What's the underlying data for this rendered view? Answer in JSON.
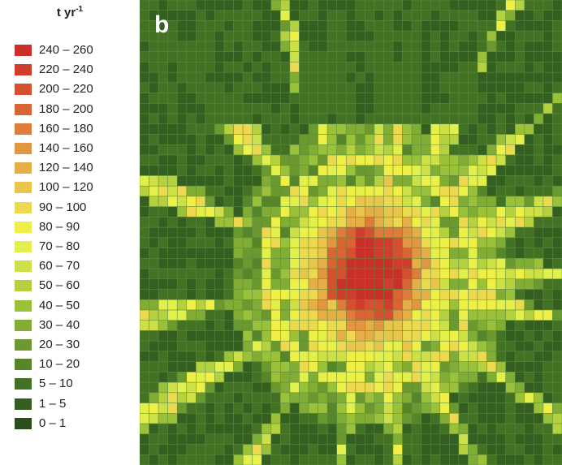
{
  "legend": {
    "title": "t yr",
    "title_sup": "-1",
    "classes": [
      {
        "label": "240 – 260",
        "color": "#c9302a"
      },
      {
        "label": "220 – 240",
        "color": "#cf3e2c"
      },
      {
        "label": "200 – 220",
        "color": "#d4502e"
      },
      {
        "label": "180 – 200",
        "color": "#d96434"
      },
      {
        "label": "160 – 180",
        "color": "#df7c3a"
      },
      {
        "label": "140 – 160",
        "color": "#e39641"
      },
      {
        "label": "120 – 140",
        "color": "#e6ae47"
      },
      {
        "label": "100 – 120",
        "color": "#e8c64d"
      },
      {
        "label": "90 – 100",
        "color": "#ecd94f"
      },
      {
        "label": "80 – 90",
        "color": "#eef048"
      },
      {
        "label": "70 – 80",
        "color": "#e3ef4a"
      },
      {
        "label": "60 – 70",
        "color": "#cde047"
      },
      {
        "label": "50 – 60",
        "color": "#b5d140"
      },
      {
        "label": "40 – 50",
        "color": "#9bc13a"
      },
      {
        "label": "30 – 40",
        "color": "#82ad35"
      },
      {
        "label": "20 – 30",
        "color": "#6b992f"
      },
      {
        "label": "10 – 20",
        "color": "#56852a"
      },
      {
        "label": "5 – 10",
        "color": "#437225"
      },
      {
        "label": "1 – 5",
        "color": "#355f20"
      },
      {
        "label": "0 – 1",
        "color": "#2a4f1b"
      }
    ]
  },
  "map": {
    "panel_label": "b",
    "background_color": "#3a6a22",
    "grid_line_color": "#5b8c3c"
  }
}
